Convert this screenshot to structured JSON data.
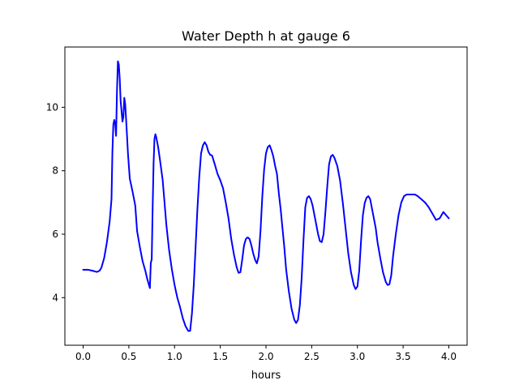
{
  "chart_data": {
    "type": "line",
    "title": "Water Depth h at gauge 6",
    "xlabel": "hours",
    "ylabel": "",
    "xlim": [
      -0.2,
      4.2
    ],
    "ylim": [
      2.5,
      11.9
    ],
    "x_ticks": [
      0.0,
      0.5,
      1.0,
      1.5,
      2.0,
      2.5,
      3.0,
      3.5,
      4.0
    ],
    "x_tick_labels": [
      "0.0",
      "0.5",
      "1.0",
      "1.5",
      "2.0",
      "2.5",
      "3.0",
      "3.5",
      "4.0"
    ],
    "y_ticks": [
      4,
      6,
      8,
      10
    ],
    "y_tick_labels": [
      "4",
      "6",
      "8",
      "10"
    ],
    "grid": false,
    "legend": "none",
    "series": [
      {
        "color": "#0000ff",
        "points": [
          [
            0.0,
            4.88
          ],
          [
            0.05,
            4.88
          ],
          [
            0.1,
            4.85
          ],
          [
            0.15,
            4.81
          ],
          [
            0.18,
            4.85
          ],
          [
            0.2,
            4.95
          ],
          [
            0.23,
            5.25
          ],
          [
            0.26,
            5.75
          ],
          [
            0.29,
            6.4
          ],
          [
            0.31,
            7.1
          ],
          [
            0.32,
            8.6
          ],
          [
            0.33,
            9.45
          ],
          [
            0.34,
            9.6
          ],
          [
            0.35,
            9.5
          ],
          [
            0.36,
            9.1
          ],
          [
            0.37,
            10.5
          ],
          [
            0.38,
            11.45
          ],
          [
            0.39,
            11.35
          ],
          [
            0.4,
            10.9
          ],
          [
            0.41,
            10.2
          ],
          [
            0.43,
            9.55
          ],
          [
            0.44,
            9.7
          ],
          [
            0.45,
            10.3
          ],
          [
            0.46,
            10.1
          ],
          [
            0.48,
            9.1
          ],
          [
            0.49,
            8.55
          ],
          [
            0.51,
            7.75
          ],
          [
            0.54,
            7.35
          ],
          [
            0.57,
            6.9
          ],
          [
            0.59,
            6.1
          ],
          [
            0.62,
            5.6
          ],
          [
            0.65,
            5.15
          ],
          [
            0.68,
            4.85
          ],
          [
            0.7,
            4.6
          ],
          [
            0.72,
            4.4
          ],
          [
            0.73,
            4.3
          ],
          [
            0.74,
            5.1
          ],
          [
            0.75,
            5.2
          ],
          [
            0.76,
            6.8
          ],
          [
            0.77,
            8.2
          ],
          [
            0.78,
            9.0
          ],
          [
            0.79,
            9.15
          ],
          [
            0.8,
            9.05
          ],
          [
            0.82,
            8.75
          ],
          [
            0.84,
            8.35
          ],
          [
            0.87,
            7.7
          ],
          [
            0.89,
            7.0
          ],
          [
            0.91,
            6.3
          ],
          [
            0.94,
            5.5
          ],
          [
            0.97,
            4.9
          ],
          [
            1.0,
            4.4
          ],
          [
            1.03,
            4.0
          ],
          [
            1.06,
            3.7
          ],
          [
            1.09,
            3.35
          ],
          [
            1.12,
            3.1
          ],
          [
            1.15,
            2.95
          ],
          [
            1.17,
            2.95
          ],
          [
            1.19,
            3.5
          ],
          [
            1.21,
            4.4
          ],
          [
            1.23,
            5.6
          ],
          [
            1.25,
            6.8
          ],
          [
            1.27,
            7.8
          ],
          [
            1.29,
            8.55
          ],
          [
            1.31,
            8.8
          ],
          [
            1.33,
            8.9
          ],
          [
            1.35,
            8.8
          ],
          [
            1.37,
            8.6
          ],
          [
            1.39,
            8.5
          ],
          [
            1.41,
            8.48
          ],
          [
            1.44,
            8.2
          ],
          [
            1.47,
            7.9
          ],
          [
            1.5,
            7.7
          ],
          [
            1.53,
            7.45
          ],
          [
            1.56,
            7.0
          ],
          [
            1.59,
            6.5
          ],
          [
            1.62,
            5.85
          ],
          [
            1.65,
            5.35
          ],
          [
            1.68,
            4.95
          ],
          [
            1.7,
            4.78
          ],
          [
            1.72,
            4.8
          ],
          [
            1.74,
            5.2
          ],
          [
            1.76,
            5.65
          ],
          [
            1.78,
            5.85
          ],
          [
            1.8,
            5.9
          ],
          [
            1.82,
            5.85
          ],
          [
            1.84,
            5.65
          ],
          [
            1.86,
            5.4
          ],
          [
            1.88,
            5.2
          ],
          [
            1.9,
            5.08
          ],
          [
            1.92,
            5.3
          ],
          [
            1.94,
            6.1
          ],
          [
            1.96,
            7.2
          ],
          [
            1.98,
            8.05
          ],
          [
            2.0,
            8.55
          ],
          [
            2.02,
            8.75
          ],
          [
            2.04,
            8.8
          ],
          [
            2.06,
            8.65
          ],
          [
            2.08,
            8.45
          ],
          [
            2.1,
            8.15
          ],
          [
            2.12,
            7.9
          ],
          [
            2.14,
            7.3
          ],
          [
            2.16,
            6.8
          ],
          [
            2.18,
            6.2
          ],
          [
            2.2,
            5.6
          ],
          [
            2.22,
            4.9
          ],
          [
            2.25,
            4.2
          ],
          [
            2.28,
            3.65
          ],
          [
            2.31,
            3.3
          ],
          [
            2.33,
            3.2
          ],
          [
            2.35,
            3.3
          ],
          [
            2.37,
            3.75
          ],
          [
            2.39,
            4.6
          ],
          [
            2.41,
            5.8
          ],
          [
            2.43,
            6.85
          ],
          [
            2.45,
            7.15
          ],
          [
            2.47,
            7.2
          ],
          [
            2.49,
            7.1
          ],
          [
            2.51,
            6.9
          ],
          [
            2.53,
            6.6
          ],
          [
            2.55,
            6.3
          ],
          [
            2.57,
            6.0
          ],
          [
            2.59,
            5.78
          ],
          [
            2.61,
            5.75
          ],
          [
            2.63,
            6.0
          ],
          [
            2.65,
            6.7
          ],
          [
            2.67,
            7.5
          ],
          [
            2.69,
            8.2
          ],
          [
            2.71,
            8.45
          ],
          [
            2.73,
            8.5
          ],
          [
            2.75,
            8.4
          ],
          [
            2.78,
            8.15
          ],
          [
            2.81,
            7.7
          ],
          [
            2.84,
            7.0
          ],
          [
            2.87,
            6.2
          ],
          [
            2.9,
            5.4
          ],
          [
            2.93,
            4.8
          ],
          [
            2.96,
            4.4
          ],
          [
            2.98,
            4.27
          ],
          [
            3.0,
            4.35
          ],
          [
            3.02,
            4.85
          ],
          [
            3.04,
            5.8
          ],
          [
            3.06,
            6.6
          ],
          [
            3.08,
            6.98
          ],
          [
            3.1,
            7.15
          ],
          [
            3.12,
            7.2
          ],
          [
            3.14,
            7.1
          ],
          [
            3.16,
            6.8
          ],
          [
            3.18,
            6.5
          ],
          [
            3.2,
            6.2
          ],
          [
            3.22,
            5.75
          ],
          [
            3.25,
            5.25
          ],
          [
            3.28,
            4.8
          ],
          [
            3.31,
            4.5
          ],
          [
            3.33,
            4.4
          ],
          [
            3.35,
            4.42
          ],
          [
            3.37,
            4.7
          ],
          [
            3.39,
            5.3
          ],
          [
            3.42,
            6.0
          ],
          [
            3.45,
            6.6
          ],
          [
            3.48,
            7.0
          ],
          [
            3.51,
            7.2
          ],
          [
            3.54,
            7.25
          ],
          [
            3.57,
            7.25
          ],
          [
            3.6,
            7.25
          ],
          [
            3.63,
            7.25
          ],
          [
            3.66,
            7.2
          ],
          [
            3.7,
            7.1
          ],
          [
            3.74,
            7.0
          ],
          [
            3.78,
            6.85
          ],
          [
            3.82,
            6.65
          ],
          [
            3.86,
            6.45
          ],
          [
            3.9,
            6.5
          ],
          [
            3.94,
            6.7
          ],
          [
            3.97,
            6.6
          ],
          [
            4.0,
            6.5
          ]
        ]
      }
    ]
  }
}
